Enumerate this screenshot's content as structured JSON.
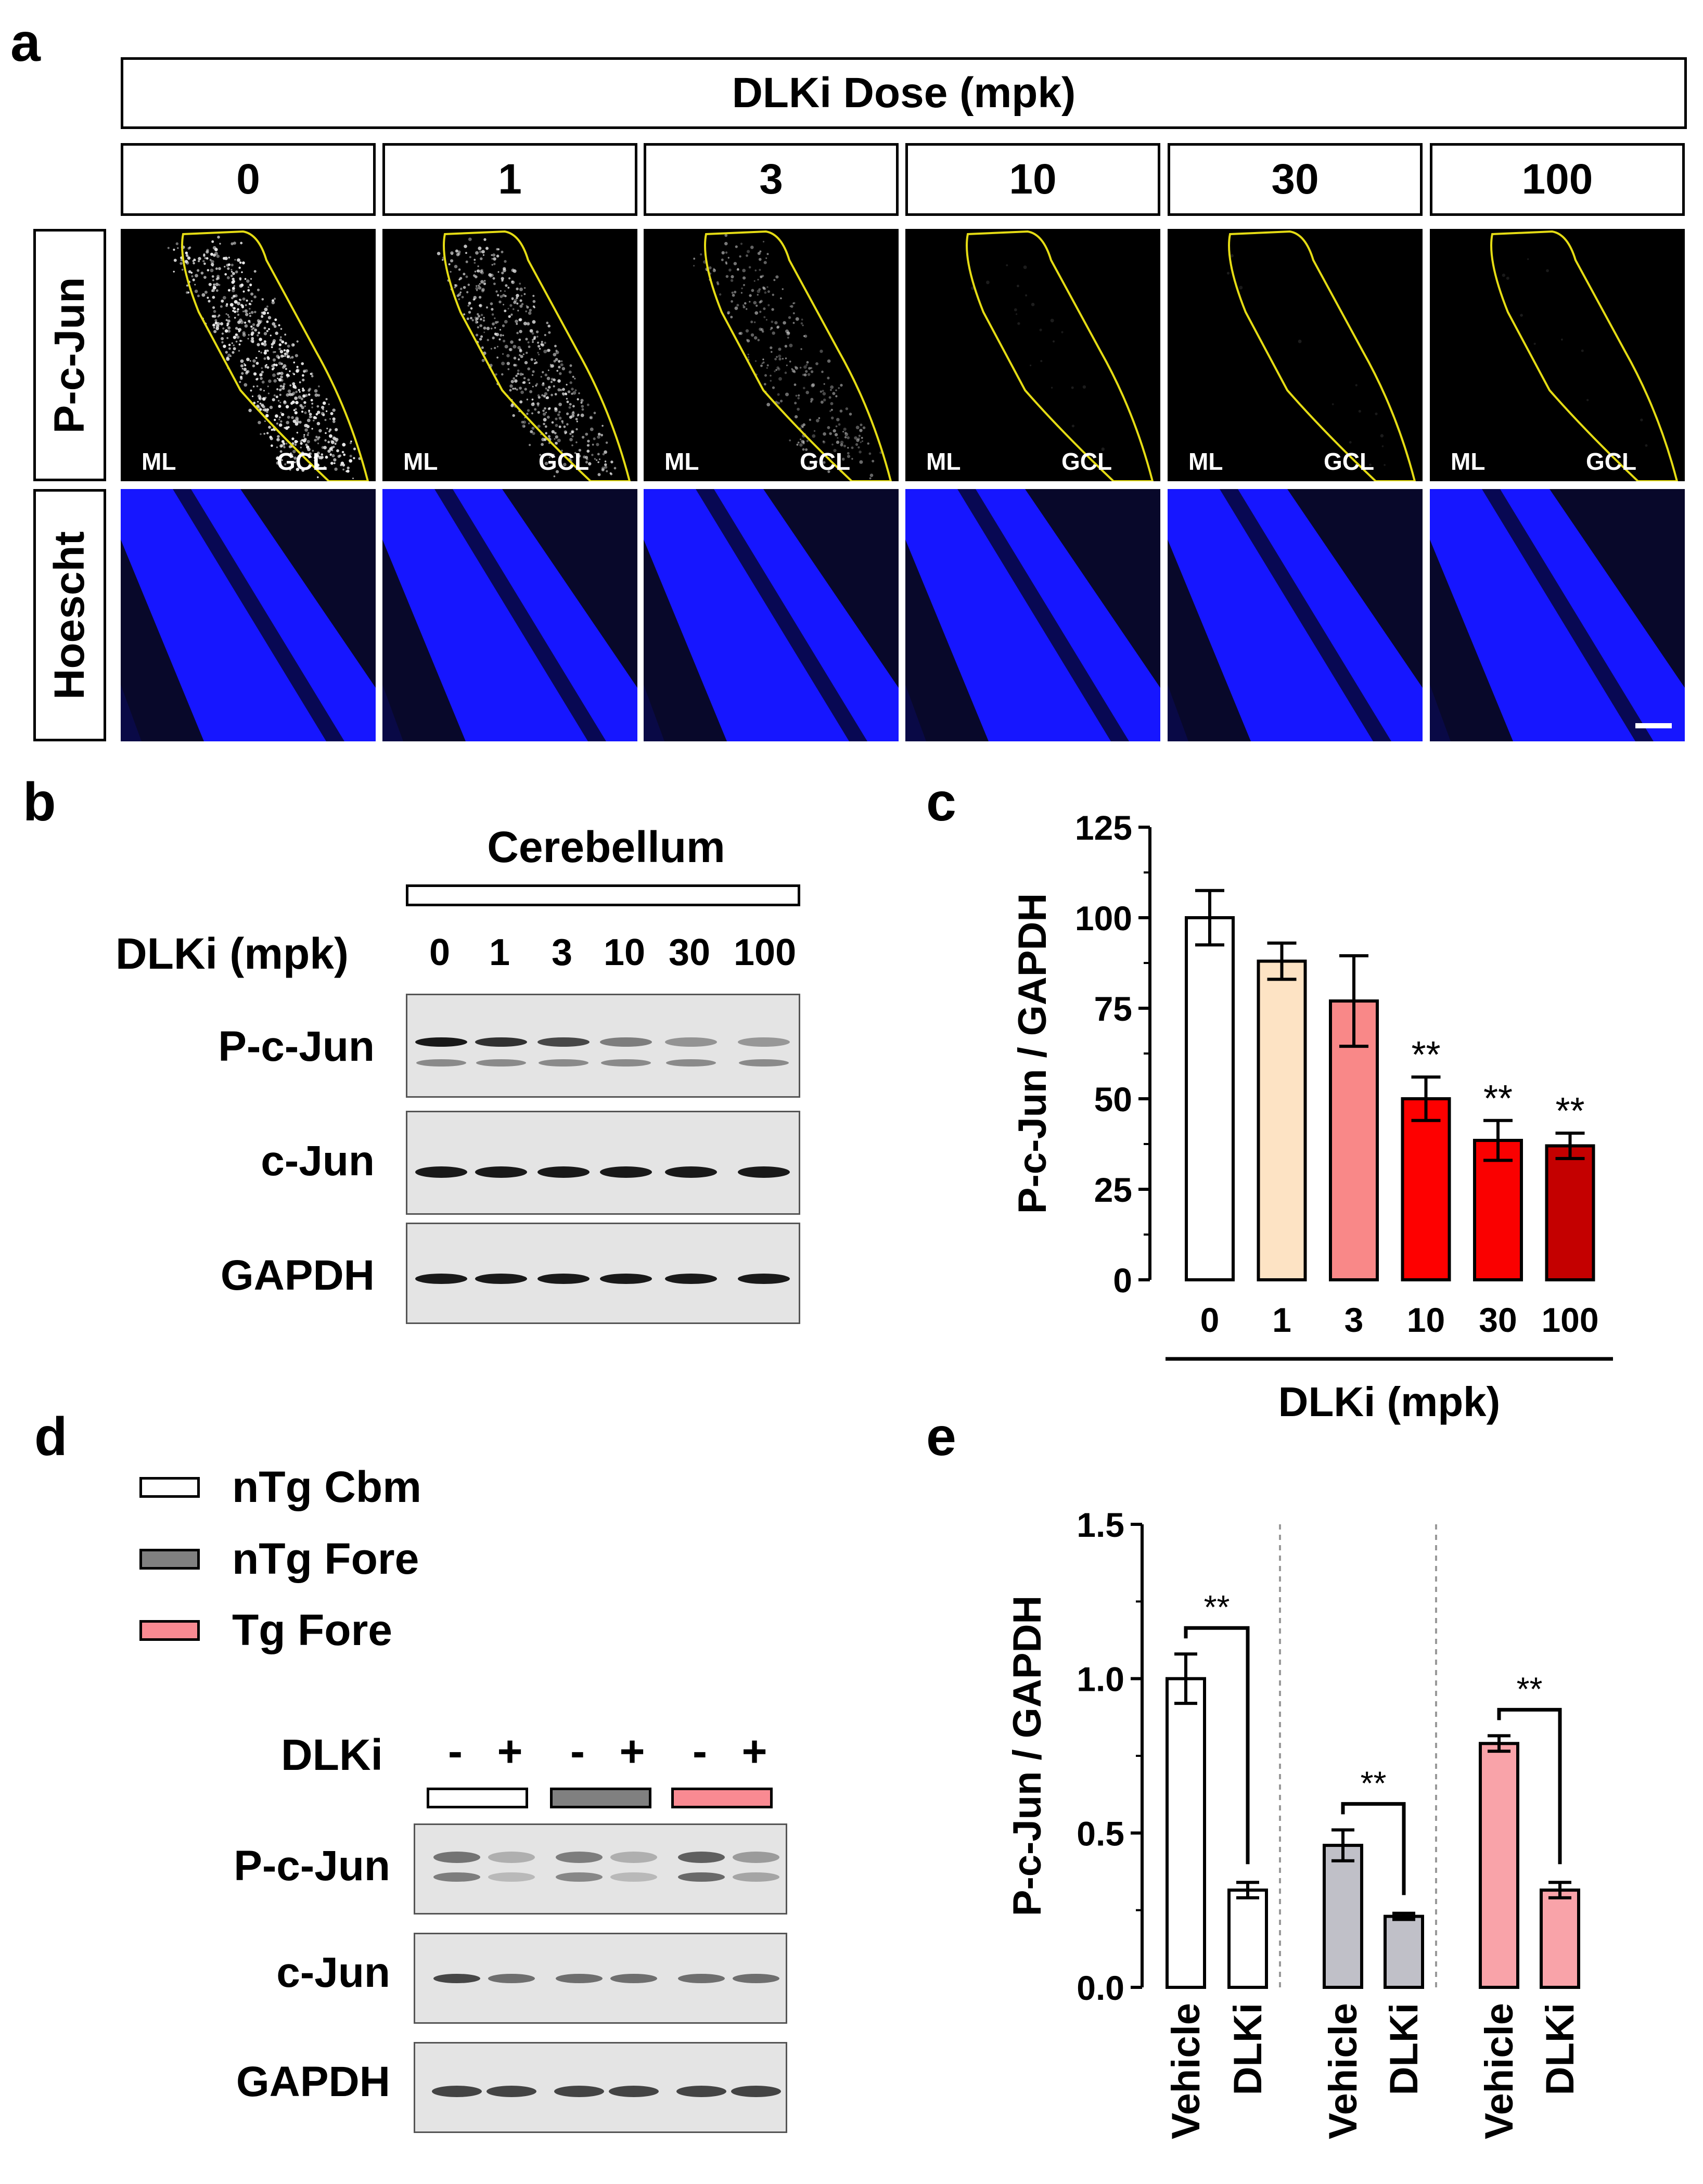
{
  "panel_a": {
    "letter": "a",
    "dose_header": "DLKi Dose (mpk)",
    "doses": [
      "0",
      "1",
      "3",
      "10",
      "30",
      "100"
    ],
    "row_labels": [
      "P-c-Jun",
      "Hoescht"
    ],
    "region_left": "ML",
    "region_right": "GCL",
    "pcjun_signal_levels": [
      1.0,
      0.75,
      0.45,
      0.03,
      0.02,
      0.02
    ],
    "colors": {
      "outline": "#e5dc14",
      "nuclei": "#1616ff",
      "signal": "#e8e8e8"
    }
  },
  "panel_b": {
    "letter": "b",
    "tissue": "Cerebellum",
    "treatment_label": "DLKi (mpk)",
    "lanes": [
      "0",
      "1",
      "3",
      "10",
      "30",
      "100"
    ],
    "blot_labels": [
      "P-c-Jun",
      "c-Jun",
      "GAPDH"
    ],
    "pcjun_band_intensity": [
      1.0,
      0.88,
      0.77,
      0.5,
      0.39,
      0.37
    ]
  },
  "panel_c": {
    "letter": "c",
    "chart_data": {
      "type": "bar",
      "categories": [
        "0",
        "1",
        "3",
        "10",
        "30",
        "100"
      ],
      "values": [
        100,
        88,
        77,
        50,
        38.5,
        37
      ],
      "errors": [
        7.5,
        5,
        12.5,
        6,
        5.5,
        3.5
      ],
      "significance": [
        "",
        "",
        "",
        "**",
        "**",
        "**"
      ],
      "bar_colors": [
        "#ffffff",
        "#fde3c4",
        "#f98888",
        "#fe0000",
        "#fa0000",
        "#c40000"
      ],
      "ylabel": "P-c-Jun / GAPDH",
      "xlabel": "DLKi (mpk)",
      "ylim": [
        0,
        125
      ],
      "yticks": [
        "0",
        "25",
        "50",
        "75",
        "100",
        "125"
      ],
      "ytick_values": [
        0,
        25,
        50,
        75,
        100,
        125
      ],
      "grid": false
    }
  },
  "panel_d": {
    "letter": "d",
    "legend": [
      {
        "label": "nTg Cbm",
        "color": "#ffffff"
      },
      {
        "label": "nTg Fore",
        "color": "#808080"
      },
      {
        "label": "Tg Fore",
        "color": "#f98a92"
      }
    ],
    "treatment_label": "DLKi",
    "lane_signs": [
      "-",
      "+",
      "-",
      "+",
      "-",
      "+"
    ],
    "blot_labels": [
      "P-c-Jun",
      "c-Jun",
      "GAPDH"
    ]
  },
  "panel_e": {
    "letter": "e",
    "chart_data": {
      "type": "bar",
      "groups": [
        "nTg Cbm",
        "nTg Fore",
        "Tg Fore"
      ],
      "categories": [
        "Vehicle",
        "DLKi",
        "Vehicle",
        "DLKi",
        "Vehicle",
        "DLKi"
      ],
      "values": [
        1.0,
        0.315,
        0.46,
        0.23,
        0.79,
        0.315
      ],
      "errors": [
        0.08,
        0.025,
        0.05,
        0.01,
        0.025,
        0.025
      ],
      "bar_colors": [
        "#ffffff",
        "#ffffff",
        "#c0c0c8",
        "#c0c0c8",
        "#f9a3a9",
        "#f9a3a9"
      ],
      "significance_brackets": [
        {
          "pair": [
            0,
            1
          ],
          "label": "**"
        },
        {
          "pair": [
            2,
            3
          ],
          "label": "**"
        },
        {
          "pair": [
            4,
            5
          ],
          "label": "**"
        }
      ],
      "ylabel": "P-c-Jun / GAPDH",
      "ylim": [
        0,
        1.5
      ],
      "yticks": [
        "0.0",
        "0.5",
        "1.0",
        "1.5"
      ],
      "ytick_values": [
        0,
        0.5,
        1.0,
        1.5
      ],
      "grid": false
    }
  }
}
